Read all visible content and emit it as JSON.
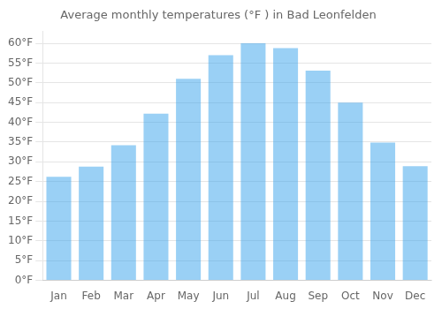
{
  "chart_data": {
    "type": "bar",
    "title": "Average monthly temperatures (°F ) in Bad Leonfelden",
    "categories": [
      "Jan",
      "Feb",
      "Mar",
      "Apr",
      "May",
      "Jun",
      "Jul",
      "Aug",
      "Sep",
      "Oct",
      "Nov",
      "Dec"
    ],
    "values": [
      26.2,
      28.8,
      34.2,
      42.2,
      51.0,
      57.0,
      60.0,
      58.8,
      53.1,
      45.0,
      34.9,
      28.9
    ],
    "ylim": [
      0,
      63
    ],
    "yticks": [
      {
        "value": 0,
        "label": "0°F"
      },
      {
        "value": 5,
        "label": "5°F"
      },
      {
        "value": 10,
        "label": "10°F"
      },
      {
        "value": 15,
        "label": "15°F"
      },
      {
        "value": 20,
        "label": "20°F"
      },
      {
        "value": 25,
        "label": "25°F"
      },
      {
        "value": 30,
        "label": "30°F"
      },
      {
        "value": 35,
        "label": "35°F"
      },
      {
        "value": 40,
        "label": "40°F"
      },
      {
        "value": 45,
        "label": "45°F"
      },
      {
        "value": 50,
        "label": "50°F"
      },
      {
        "value": 55,
        "label": "55°F"
      },
      {
        "value": 60,
        "label": "60°F"
      }
    ],
    "grid": true
  }
}
